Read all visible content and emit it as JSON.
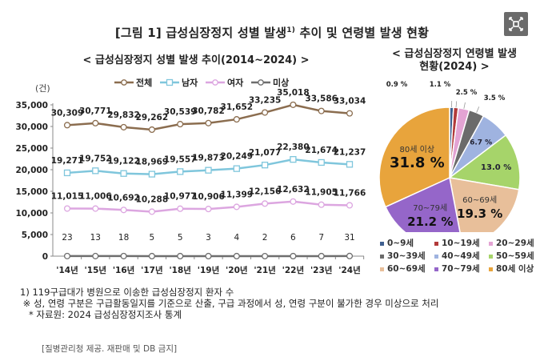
{
  "title": "[그림 1] 급성심장정지 성별 발생",
  "title_sup": "1)",
  "title_tail": " 추이 및 연령별 발생 현황",
  "expand_button": {
    "icon": "expand-icon"
  },
  "chart_data": [
    {
      "type": "line",
      "title": "< 급성심장정지 성별 발생 추이(2014~2024) >",
      "ylabel": "(건)",
      "xlabel": "",
      "ylim": [
        0,
        35000
      ],
      "yticks": [
        "0",
        "5,000",
        "10,000",
        "15,000",
        "20,000",
        "25,000",
        "30,000",
        "35,000"
      ],
      "ytick_values": [
        0,
        5000,
        10000,
        15000,
        20000,
        25000,
        30000,
        35000
      ],
      "grid": false,
      "legend_position": "top",
      "categories": [
        "'14년",
        "'15년",
        "'16년",
        "'17년",
        "'18년",
        "'19년",
        "'20년",
        "'21년",
        "'22년",
        "'23년",
        "'24년"
      ],
      "series": [
        {
          "name": "전체",
          "color": "#8b6d4f",
          "values": [
            30309,
            30771,
            29832,
            29262,
            30539,
            30782,
            31652,
            33235,
            35018,
            33586,
            33034
          ],
          "labels": [
            "30,309",
            "30,771",
            "29,832",
            "29,262",
            "30,539",
            "30,782",
            "31,652",
            "33,235",
            "35,018",
            "33,586",
            "33,034"
          ]
        },
        {
          "name": "남자",
          "color": "#7fc6dc",
          "values": [
            19271,
            19752,
            19122,
            18969,
            19557,
            19873,
            20249,
            21077,
            22380,
            21674,
            21237
          ],
          "labels": [
            "19,271",
            "19,752",
            "19,122",
            "18,969",
            "19,557",
            "19,873",
            "20,249",
            "21,077",
            "22,380",
            "21,674",
            "21,237"
          ]
        },
        {
          "name": "여자",
          "color": "#dca6e0",
          "values": [
            11015,
            11006,
            10692,
            10288,
            10977,
            10906,
            11399,
            12156,
            12632,
            11905,
            11766
          ],
          "labels": [
            "11,015",
            "11,006",
            "10,692",
            "10,288",
            "10,977",
            "10,906",
            "11,399",
            "12,156",
            "12,632",
            "11,905",
            "11,766"
          ]
        },
        {
          "name": "미상",
          "color": "#6e6e6e",
          "values": [
            23,
            13,
            18,
            5,
            5,
            3,
            4,
            2,
            6,
            7,
            31
          ],
          "labels": [
            "23",
            "13",
            "18",
            "5",
            "5",
            "3",
            "4",
            "2",
            "6",
            "7",
            "31"
          ]
        }
      ]
    },
    {
      "type": "pie",
      "title": "< 급성심장정지 연령별 발생 현황(2024) >",
      "title_lines": [
        "< 급성심장정지 연령별 발생",
        "현황(2024) >"
      ],
      "legend_position": "bottom",
      "slices": [
        {
          "name": "0~9세",
          "value": 0.9,
          "label": "0.9 %",
          "color": "#3f5f8f"
        },
        {
          "name": "10~19세",
          "value": 1.1,
          "label": "1.1 %",
          "color": "#b23a3a"
        },
        {
          "name": "20~29세",
          "value": 2.5,
          "label": "2.5 %",
          "color": "#e3a3d3"
        },
        {
          "name": "30~39세",
          "value": 3.5,
          "label": "3.5 %",
          "color": "#6b6b6b"
        },
        {
          "name": "40~49세",
          "value": 6.7,
          "label": "6.7 %",
          "color": "#9fb3e0"
        },
        {
          "name": "50~59세",
          "value": 13.0,
          "label": "13.0 %",
          "color": "#a6d46a"
        },
        {
          "name": "60~69세",
          "value": 19.3,
          "label": "19.3 %",
          "inner_name": "60~69세",
          "color": "#e8bf9a"
        },
        {
          "name": "70~79세",
          "value": 21.2,
          "label": "21.2 %",
          "inner_name": "70~79세",
          "color": "#9566c9"
        },
        {
          "name": "80세 이상",
          "value": 31.8,
          "label": "31.8 %",
          "inner_name": "80세 이상",
          "color": "#e8a43c"
        }
      ]
    }
  ],
  "notes": [
    "1) 119구급대가 병원으로 이송한 급성심장정지 환자 수",
    " ※ 성, 연령 구분은 구급활동일지를 기준으로 산출, 구급 과정에서 성, 연령 구분이 불가한 경우 미상으로 처리",
    "   * 자료원: 2024 급성심장정지조사 통계"
  ],
  "credit": "[질병관리청 제공. 재판매 및 DB 금지]"
}
